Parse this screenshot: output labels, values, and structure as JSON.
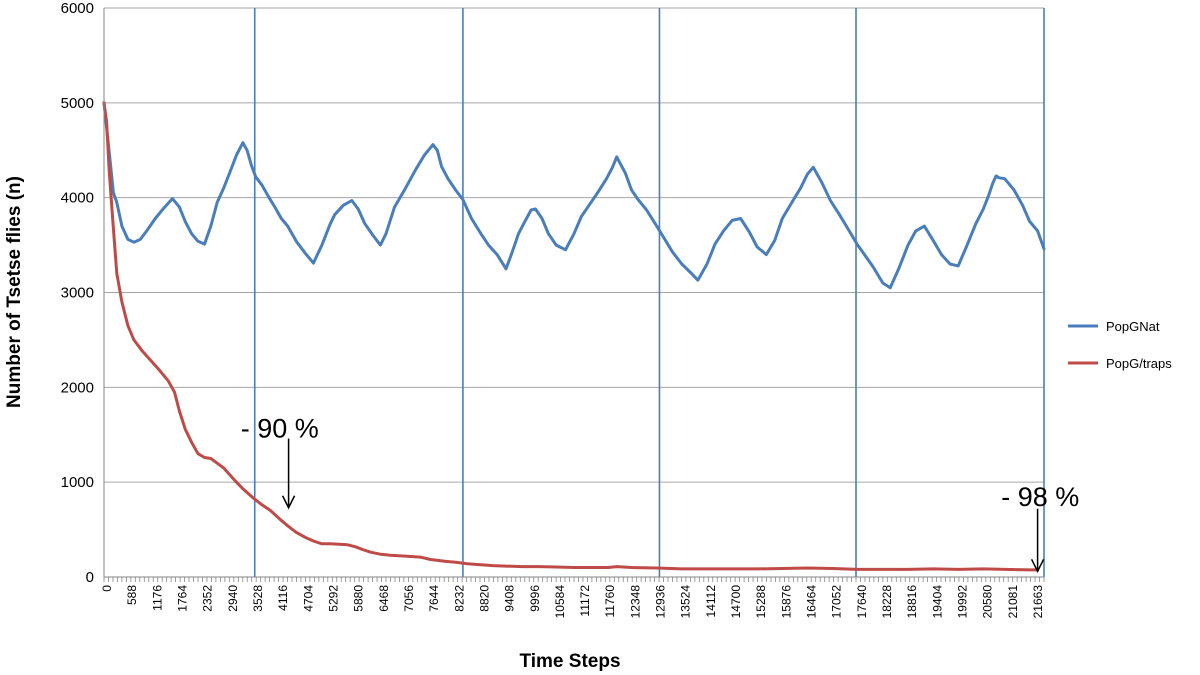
{
  "chart_data": {
    "type": "line",
    "title": "",
    "xlabel": "Time Steps",
    "ylabel": "Number of Tsetse flies (n)",
    "xlim": [
      0,
      22000
    ],
    "ylim": [
      0,
      6000
    ],
    "y_ticks": [
      0,
      1000,
      2000,
      3000,
      4000,
      5000,
      6000
    ],
    "x_tick_labels": [
      "0",
      "588",
      "1176",
      "1764",
      "2352",
      "2940",
      "3528",
      "4116",
      "4704",
      "5292",
      "5880",
      "6468",
      "7056",
      "7644",
      "8232",
      "8820",
      "9408",
      "9996",
      "10584",
      "11172",
      "11760",
      "12348",
      "12936",
      "13524",
      "14112",
      "14700",
      "15288",
      "15876",
      "16464",
      "17052",
      "17640",
      "18228",
      "18816",
      "19404",
      "19992",
      "20580",
      "21081",
      "21663"
    ],
    "grid": "horizontal",
    "legend_position": "right",
    "vertical_lines_x": [
      3528,
      8400,
      13000,
      17600,
      22000
    ],
    "annotations": [
      {
        "text": "- 90 %",
        "x": 3200,
        "y": 1470,
        "arrow_from": [
          4320,
          1460
        ],
        "arrow_to": [
          4320,
          730
        ]
      },
      {
        "text": "- 98 %",
        "x": 21000,
        "y": 750,
        "arrow_from": [
          21850,
          720
        ],
        "arrow_to": [
          21850,
          60
        ]
      }
    ],
    "series": [
      {
        "name": "PopGNat",
        "color": "#4a7ebb",
        "x": [
          0,
          140,
          220,
          300,
          420,
          560,
          700,
          850,
          1000,
          1200,
          1400,
          1600,
          1764,
          1900,
          2050,
          2200,
          2352,
          2500,
          2650,
          2800,
          2940,
          3100,
          3250,
          3350,
          3450,
          3550,
          3700,
          3850,
          4000,
          4150,
          4300,
          4500,
          4700,
          4900,
          5100,
          5292,
          5400,
          5600,
          5800,
          5950,
          6100,
          6300,
          6468,
          6600,
          6800,
          7056,
          7300,
          7500,
          7700,
          7800,
          7900,
          8050,
          8232,
          8400,
          8600,
          8820,
          9000,
          9200,
          9408,
          9550,
          9700,
          9850,
          9996,
          10100,
          10250,
          10400,
          10584,
          10800,
          11000,
          11172,
          11350,
          11550,
          11760,
          11900,
          12000,
          12200,
          12348,
          12500,
          12700,
          12936,
          13100,
          13300,
          13524,
          13750,
          13900,
          14112,
          14300,
          14500,
          14700,
          14900,
          15100,
          15288,
          15500,
          15700,
          15876,
          16100,
          16300,
          16464,
          16600,
          16800,
          17000,
          17200,
          17400,
          17640,
          17800,
          18000,
          18228,
          18400,
          18600,
          18816,
          19000,
          19200,
          19404,
          19600,
          19800,
          19992,
          20200,
          20400,
          20580,
          20700,
          20800,
          20880,
          20950,
          21081,
          21300,
          21500,
          21663,
          21850,
          22000
        ],
        "values": [
          5000,
          4400,
          4050,
          3950,
          3700,
          3560,
          3530,
          3560,
          3650,
          3780,
          3890,
          3990,
          3900,
          3750,
          3620,
          3540,
          3510,
          3700,
          3950,
          4100,
          4260,
          4450,
          4580,
          4500,
          4340,
          4220,
          4130,
          4010,
          3900,
          3780,
          3700,
          3540,
          3420,
          3310,
          3500,
          3720,
          3820,
          3920,
          3970,
          3880,
          3730,
          3600,
          3500,
          3620,
          3900,
          4100,
          4300,
          4450,
          4560,
          4500,
          4330,
          4200,
          4080,
          3980,
          3780,
          3620,
          3500,
          3400,
          3250,
          3420,
          3620,
          3750,
          3870,
          3880,
          3780,
          3620,
          3500,
          3450,
          3620,
          3800,
          3920,
          4050,
          4200,
          4320,
          4430,
          4260,
          4080,
          3980,
          3870,
          3700,
          3580,
          3430,
          3300,
          3200,
          3130,
          3300,
          3510,
          3650,
          3760,
          3780,
          3640,
          3480,
          3400,
          3550,
          3780,
          3950,
          4100,
          4250,
          4320,
          4160,
          3970,
          3830,
          3680,
          3500,
          3400,
          3270,
          3100,
          3050,
          3250,
          3500,
          3650,
          3700,
          3550,
          3400,
          3300,
          3280,
          3500,
          3720,
          3880,
          4020,
          4150,
          4230,
          4210,
          4200,
          4080,
          3920,
          3750,
          3650,
          3460
        ]
      },
      {
        "name": "PopG/traps",
        "color": "#be4b48",
        "x": [
          0,
          60,
          120,
          200,
          300,
          420,
          560,
          700,
          900,
          1100,
          1300,
          1500,
          1650,
          1764,
          1900,
          2050,
          2200,
          2352,
          2500,
          2650,
          2800,
          2940,
          3100,
          3250,
          3400,
          3528,
          3700,
          3900,
          4116,
          4300,
          4500,
          4704,
          4900,
          5100,
          5292,
          5500,
          5700,
          5880,
          6050,
          6250,
          6468,
          6700,
          7056,
          7400,
          7644,
          8000,
          8232,
          8500,
          8820,
          9100,
          9408,
          9800,
          10200,
          10584,
          11000,
          11400,
          11800,
          12000,
          12348,
          12936,
          13524,
          14112,
          14700,
          15288,
          15876,
          16464,
          17052,
          17640,
          18228,
          18816,
          19404,
          19992,
          20580,
          21081,
          21663,
          21850
        ],
        "values": [
          5000,
          4800,
          4300,
          3800,
          3200,
          2900,
          2650,
          2500,
          2380,
          2280,
          2180,
          2070,
          1950,
          1750,
          1560,
          1420,
          1300,
          1260,
          1250,
          1200,
          1150,
          1080,
          1000,
          930,
          870,
          820,
          760,
          700,
          610,
          540,
          470,
          420,
          380,
          350,
          350,
          345,
          340,
          320,
          290,
          260,
          240,
          230,
          220,
          210,
          185,
          165,
          155,
          140,
          130,
          120,
          115,
          110,
          110,
          105,
          100,
          100,
          100,
          110,
          100,
          95,
          85,
          85,
          85,
          85,
          90,
          95,
          90,
          80,
          80,
          80,
          85,
          80,
          85,
          80,
          75,
          75
        ]
      }
    ]
  }
}
